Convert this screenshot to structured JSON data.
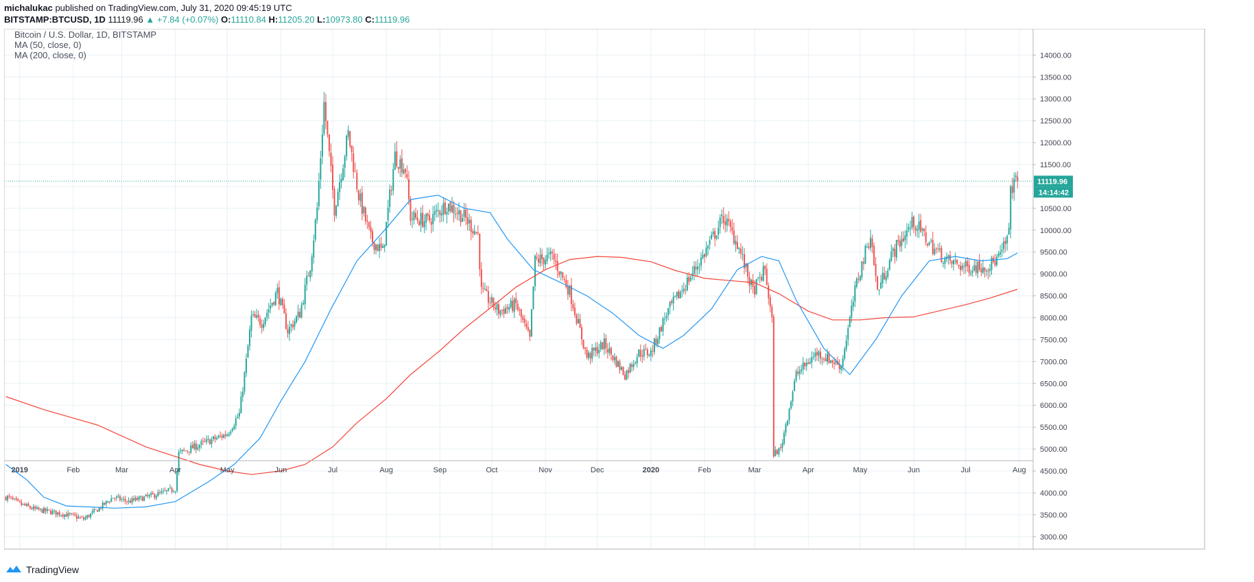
{
  "header": {
    "author": "michalukac",
    "published_text": "published on TradingView.com, July 31, 2020 09:45:19 UTC",
    "symbol": "BITSTAMP:BTCUSD, 1D",
    "last": "11119.96",
    "change": "▲ +7.84 (+0.07%)",
    "o_label": "O:",
    "o_value": "11110.84",
    "h_label": "H:",
    "h_value": "11205.20",
    "l_label": "L:",
    "l_value": "10973.80",
    "c_label": "C:",
    "c_value": "11119.96"
  },
  "legend": {
    "title": "Bitcoin / U.S. Dollar, 1D, BITSTAMP",
    "ma50": "MA (50, close, 0)",
    "ma200": "MA (200, close, 0)"
  },
  "price_tag": {
    "price": "11119.96",
    "countdown": "14:14:42"
  },
  "footer": {
    "brand": "TradingView"
  },
  "colors": {
    "up": "#26a69a",
    "down": "#ef5350",
    "ma50": "#2196f3",
    "ma200": "#f44336",
    "grid": "#e8f0f5",
    "axis_text": "#434651",
    "price_line": "#26a69a"
  },
  "chart_data": {
    "type": "candlestick",
    "x_axis_labels": [
      "2019",
      "Feb",
      "Mar",
      "Apr",
      "May",
      "Jun",
      "Jul",
      "Aug",
      "Sep",
      "Oct",
      "Nov",
      "Dec",
      "2020",
      "Feb",
      "Mar",
      "Apr",
      "May",
      "Jun",
      "Jul",
      "Aug"
    ],
    "y_ticks": [
      "3000.00",
      "3500.00",
      "4000.00",
      "4500.00",
      "5000.00",
      "5500.00",
      "6000.00",
      "6500.00",
      "7000.00",
      "7500.00",
      "8000.00",
      "8500.00",
      "9000.00",
      "9500.00",
      "10000.00",
      "10500.00",
      "11000.00",
      "11500.00",
      "12000.00",
      "12500.00",
      "13000.00",
      "13500.00",
      "14000.00"
    ],
    "ylim": [
      2700,
      14600
    ],
    "x_range": [
      "2018-12-23",
      "2020-08-09"
    ],
    "grid": true,
    "last_price": 11119.96,
    "price_path": [
      [
        "2018-12-25",
        3900
      ],
      [
        "2019-01-01",
        3750
      ],
      [
        "2019-01-10",
        3620
      ],
      [
        "2019-01-20",
        3560
      ],
      [
        "2019-01-31",
        3480
      ],
      [
        "2019-02-07",
        3400
      ],
      [
        "2019-02-15",
        3620
      ],
      [
        "2019-02-24",
        3900
      ],
      [
        "2019-03-05",
        3800
      ],
      [
        "2019-03-15",
        3900
      ],
      [
        "2019-03-25",
        4000
      ],
      [
        "2019-04-01",
        4100
      ],
      [
        "2019-04-03",
        4900
      ],
      [
        "2019-04-15",
        5100
      ],
      [
        "2019-04-25",
        5250
      ],
      [
        "2019-05-01",
        5350
      ],
      [
        "2019-05-08",
        5800
      ],
      [
        "2019-05-12",
        7000
      ],
      [
        "2019-05-15",
        8000
      ],
      [
        "2019-05-21",
        7900
      ],
      [
        "2019-05-30",
        8600
      ],
      [
        "2019-06-05",
        7700
      ],
      [
        "2019-06-12",
        8100
      ],
      [
        "2019-06-18",
        9200
      ],
      [
        "2019-06-22",
        10500
      ],
      [
        "2019-06-26",
        12900
      ],
      [
        "2019-07-02",
        10500
      ],
      [
        "2019-07-10",
        12200
      ],
      [
        "2019-07-16",
        10800
      ],
      [
        "2019-07-23",
        9800
      ],
      [
        "2019-07-30",
        9500
      ],
      [
        "2019-08-06",
        11700
      ],
      [
        "2019-08-12",
        11400
      ],
      [
        "2019-08-15",
        10300
      ],
      [
        "2019-08-25",
        10200
      ],
      [
        "2019-09-05",
        10600
      ],
      [
        "2019-09-15",
        10300
      ],
      [
        "2019-09-23",
        9900
      ],
      [
        "2019-09-25",
        8600
      ],
      [
        "2019-10-05",
        8150
      ],
      [
        "2019-10-15",
        8300
      ],
      [
        "2019-10-23",
        7500
      ],
      [
        "2019-10-26",
        9300
      ],
      [
        "2019-11-05",
        9400
      ],
      [
        "2019-11-15",
        8600
      ],
      [
        "2019-11-25",
        7100
      ],
      [
        "2019-12-05",
        7400
      ],
      [
        "2019-12-17",
        6700
      ],
      [
        "2019-12-25",
        7200
      ],
      [
        "2020-01-01",
        7200
      ],
      [
        "2020-01-10",
        8100
      ],
      [
        "2020-01-20",
        8700
      ],
      [
        "2020-01-31",
        9400
      ],
      [
        "2020-02-12",
        10300
      ],
      [
        "2020-02-20",
        9700
      ],
      [
        "2020-02-29",
        8600
      ],
      [
        "2020-03-07",
        9100
      ],
      [
        "2020-03-11",
        7900
      ],
      [
        "2020-03-12",
        4900
      ],
      [
        "2020-03-16",
        5000
      ],
      [
        "2020-03-25",
        6700
      ],
      [
        "2020-04-06",
        7200
      ],
      [
        "2020-04-20",
        6900
      ],
      [
        "2020-04-29",
        8800
      ],
      [
        "2020-05-07",
        9900
      ],
      [
        "2020-05-11",
        8600
      ],
      [
        "2020-05-20",
        9500
      ],
      [
        "2020-06-01",
        10200
      ],
      [
        "2020-06-10",
        9700
      ],
      [
        "2020-06-20",
        9300
      ],
      [
        "2020-07-01",
        9150
      ],
      [
        "2020-07-15",
        9200
      ],
      [
        "2020-07-21",
        9400
      ],
      [
        "2020-07-26",
        9900
      ],
      [
        "2020-07-27",
        11000
      ],
      [
        "2020-07-31",
        11119.96
      ]
    ],
    "series": [
      {
        "name": "MA (50, close, 0)",
        "points": [
          [
            "2018-12-24",
            4650
          ],
          [
            "2019-01-05",
            4300
          ],
          [
            "2019-01-15",
            3900
          ],
          [
            "2019-01-28",
            3700
          ],
          [
            "2019-02-10",
            3680
          ],
          [
            "2019-02-25",
            3650
          ],
          [
            "2019-03-15",
            3680
          ],
          [
            "2019-04-01",
            3800
          ],
          [
            "2019-04-20",
            4250
          ],
          [
            "2019-05-05",
            4650
          ],
          [
            "2019-05-20",
            5250
          ],
          [
            "2019-06-01",
            6100
          ],
          [
            "2019-06-15",
            7000
          ],
          [
            "2019-06-30",
            8200
          ],
          [
            "2019-07-15",
            9300
          ],
          [
            "2019-07-31",
            10000
          ],
          [
            "2019-08-15",
            10700
          ],
          [
            "2019-08-31",
            10800
          ],
          [
            "2019-09-15",
            10500
          ],
          [
            "2019-09-30",
            10400
          ],
          [
            "2019-10-10",
            9800
          ],
          [
            "2019-10-25",
            9100
          ],
          [
            "2019-11-10",
            8800
          ],
          [
            "2019-11-25",
            8500
          ],
          [
            "2019-12-10",
            8100
          ],
          [
            "2019-12-25",
            7600
          ],
          [
            "2020-01-08",
            7300
          ],
          [
            "2020-01-20",
            7600
          ],
          [
            "2020-02-05",
            8200
          ],
          [
            "2020-02-20",
            9100
          ],
          [
            "2020-03-05",
            9400
          ],
          [
            "2020-03-15",
            9300
          ],
          [
            "2020-03-25",
            8400
          ],
          [
            "2020-04-10",
            7300
          ],
          [
            "2020-04-25",
            6700
          ],
          [
            "2020-05-10",
            7500
          ],
          [
            "2020-05-25",
            8500
          ],
          [
            "2020-06-10",
            9300
          ],
          [
            "2020-06-25",
            9400
          ],
          [
            "2020-07-10",
            9300
          ],
          [
            "2020-07-25",
            9350
          ],
          [
            "2020-07-31",
            9480
          ]
        ]
      },
      {
        "name": "MA (200, close, 0)",
        "points": [
          [
            "2018-12-24",
            6200
          ],
          [
            "2019-01-15",
            5900
          ],
          [
            "2019-02-15",
            5550
          ],
          [
            "2019-03-15",
            5050
          ],
          [
            "2019-04-15",
            4650
          ],
          [
            "2019-05-01",
            4500
          ],
          [
            "2019-05-15",
            4420
          ],
          [
            "2019-06-01",
            4500
          ],
          [
            "2019-06-15",
            4650
          ],
          [
            "2019-07-01",
            5050
          ],
          [
            "2019-07-15",
            5600
          ],
          [
            "2019-08-01",
            6150
          ],
          [
            "2019-08-15",
            6700
          ],
          [
            "2019-09-01",
            7250
          ],
          [
            "2019-09-15",
            7750
          ],
          [
            "2019-10-01",
            8250
          ],
          [
            "2019-10-15",
            8700
          ],
          [
            "2019-11-01",
            9100
          ],
          [
            "2019-11-15",
            9330
          ],
          [
            "2019-12-01",
            9400
          ],
          [
            "2019-12-15",
            9380
          ],
          [
            "2020-01-01",
            9280
          ],
          [
            "2020-01-15",
            9080
          ],
          [
            "2020-02-01",
            8900
          ],
          [
            "2020-02-15",
            8850
          ],
          [
            "2020-03-01",
            8800
          ],
          [
            "2020-03-15",
            8550
          ],
          [
            "2020-04-01",
            8150
          ],
          [
            "2020-04-15",
            7950
          ],
          [
            "2020-05-01",
            7950
          ],
          [
            "2020-05-15",
            8000
          ],
          [
            "2020-06-01",
            8020
          ],
          [
            "2020-06-15",
            8150
          ],
          [
            "2020-07-01",
            8300
          ],
          [
            "2020-07-15",
            8450
          ],
          [
            "2020-07-31",
            8650
          ]
        ]
      }
    ]
  }
}
